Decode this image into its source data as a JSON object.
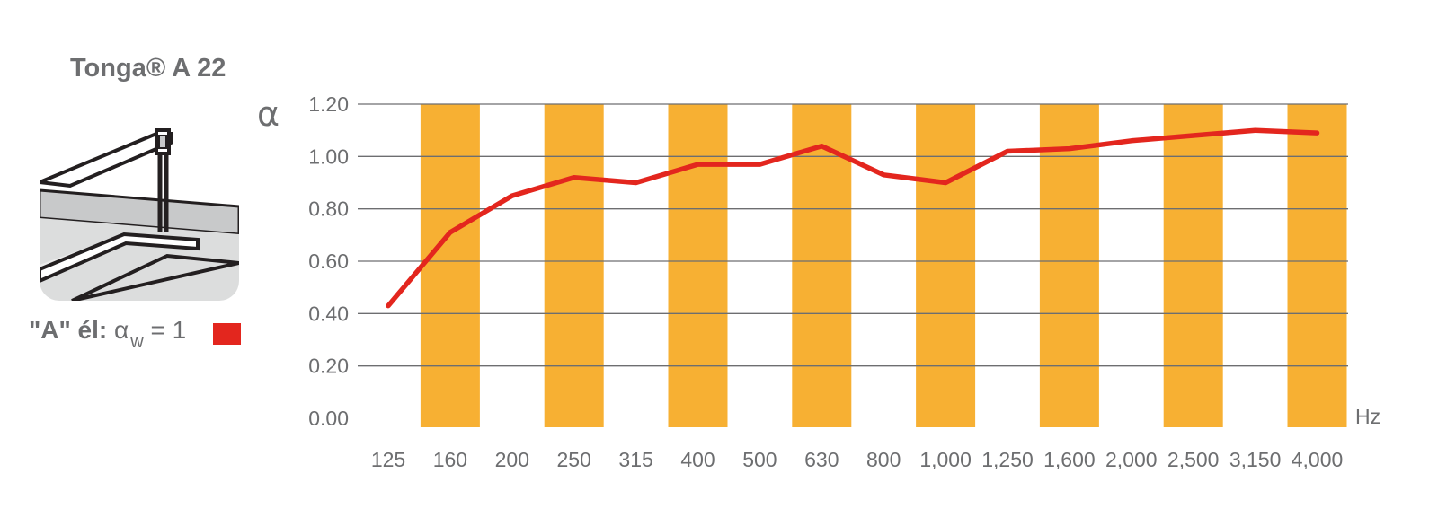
{
  "product": {
    "title": "Tonga® A 22"
  },
  "legend": {
    "edge_label": "\"A\" él:",
    "symbol": "α",
    "subscript": "w",
    "value_text": "= 1",
    "swatch_color": "#e3261e"
  },
  "colors": {
    "band": "#f7b033",
    "line": "#e3261e",
    "grid": "#6d6e70",
    "text": "#6d6e70"
  },
  "chart_data": {
    "type": "line",
    "title": "",
    "xlabel": "Hz",
    "ylabel": "α",
    "categories": [
      "125",
      "160",
      "200",
      "250",
      "315",
      "400",
      "500",
      "630",
      "800",
      "1,000",
      "1,250",
      "1,600",
      "2,000",
      "2,500",
      "3,150",
      "4,000"
    ],
    "series": [
      {
        "name": "",
        "values": [
          0.43,
          0.71,
          0.85,
          0.92,
          0.9,
          0.97,
          0.97,
          1.04,
          0.93,
          0.9,
          1.02,
          1.03,
          1.06,
          1.08,
          1.1,
          1.09
        ]
      }
    ],
    "yticks": [
      "0.00",
      "0.20",
      "0.40",
      "0.60",
      "0.80",
      "1.00",
      "1.20"
    ],
    "ylim": [
      0,
      1.2
    ],
    "alternate_bands": true,
    "grid": true
  }
}
